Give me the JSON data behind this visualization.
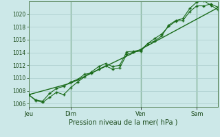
{
  "background_color": "#cce8e8",
  "plot_bg_color": "#cce8e8",
  "grid_color": "#aacccc",
  "line_color": "#1a6b1a",
  "marker_color": "#1a6b1a",
  "title": "Pression niveau de la mer( hPa )",
  "xlabel_day_labels": [
    "Jeu",
    "Dim",
    "Ven",
    "Sam"
  ],
  "xlabel_day_positions": [
    0.0,
    0.222,
    0.593,
    0.889
  ],
  "ylim": [
    1005.5,
    1022.0
  ],
  "yticks": [
    1006,
    1008,
    1010,
    1012,
    1014,
    1016,
    1018,
    1020
  ],
  "series1_x": [
    0,
    1,
    2,
    3,
    4,
    5,
    6,
    7,
    8,
    9,
    10,
    11,
    12,
    13,
    14,
    15,
    16,
    17,
    18,
    19,
    20,
    21,
    22,
    23,
    24,
    25,
    26,
    27
  ],
  "series1_y": [
    1007.4,
    1006.5,
    1006.2,
    1007.0,
    1007.8,
    1007.4,
    1008.5,
    1009.4,
    1010.2,
    1011.0,
    1011.8,
    1012.3,
    1011.8,
    1012.0,
    1014.1,
    1014.2,
    1014.4,
    1015.4,
    1016.2,
    1016.9,
    1018.1,
    1018.9,
    1019.0,
    1020.4,
    1021.3,
    1021.3,
    1021.6,
    1021.1
  ],
  "series2_x": [
    0,
    1,
    2,
    3,
    4,
    5,
    6,
    7,
    8,
    9,
    10,
    11,
    12,
    13,
    14,
    15,
    16,
    17,
    18,
    19,
    20,
    21,
    22,
    23,
    24,
    25,
    26,
    27
  ],
  "series2_y": [
    1007.4,
    1006.6,
    1006.4,
    1007.6,
    1008.4,
    1008.7,
    1009.4,
    1009.8,
    1010.6,
    1010.8,
    1011.4,
    1011.9,
    1011.4,
    1011.6,
    1013.7,
    1014.1,
    1014.2,
    1015.4,
    1015.8,
    1016.6,
    1018.3,
    1019.0,
    1019.3,
    1020.9,
    1021.9,
    1022.1,
    1021.4,
    1020.7
  ],
  "series3_x": [
    0,
    6,
    16,
    27
  ],
  "series3_y": [
    1007.4,
    1009.2,
    1014.5,
    1021.0
  ],
  "vline_positions": [
    6,
    16,
    24
  ],
  "xlim": [
    0,
    27
  ],
  "total_points": 28
}
